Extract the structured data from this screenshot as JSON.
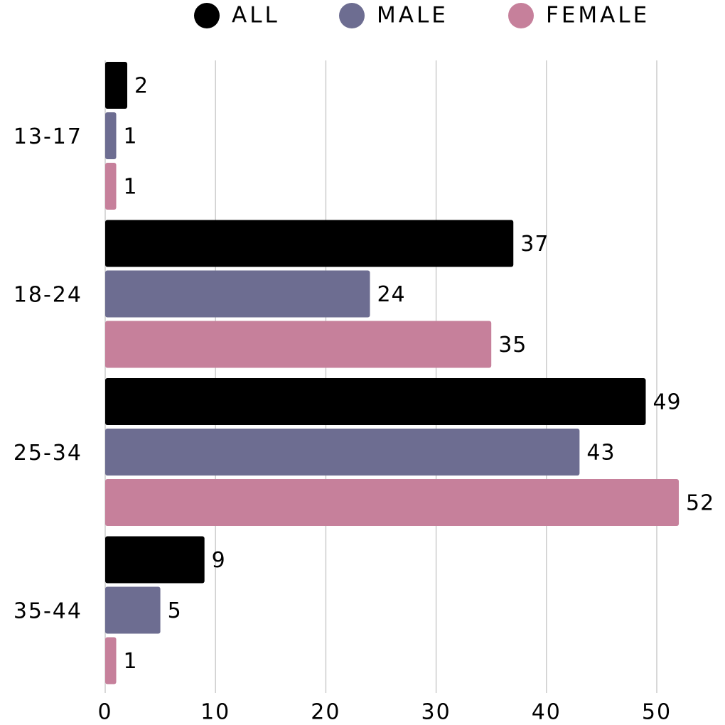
{
  "chart_data": {
    "type": "bar",
    "orientation": "horizontal",
    "categories": [
      "13-17",
      "18-24",
      "25-34",
      "35-44"
    ],
    "series": [
      {
        "name": "ALL",
        "color": "#000000",
        "values": [
          2,
          37,
          49,
          9
        ]
      },
      {
        "name": "MALE",
        "color": "#6d6d91",
        "values": [
          1,
          24,
          43,
          5
        ]
      },
      {
        "name": "FEMALE",
        "color": "#c6809b",
        "values": [
          1,
          35,
          52,
          1
        ]
      }
    ],
    "xlim": [
      0,
      55
    ],
    "xticks": [
      0,
      10,
      20,
      30,
      40,
      50
    ],
    "grid": true,
    "legend": "top"
  }
}
